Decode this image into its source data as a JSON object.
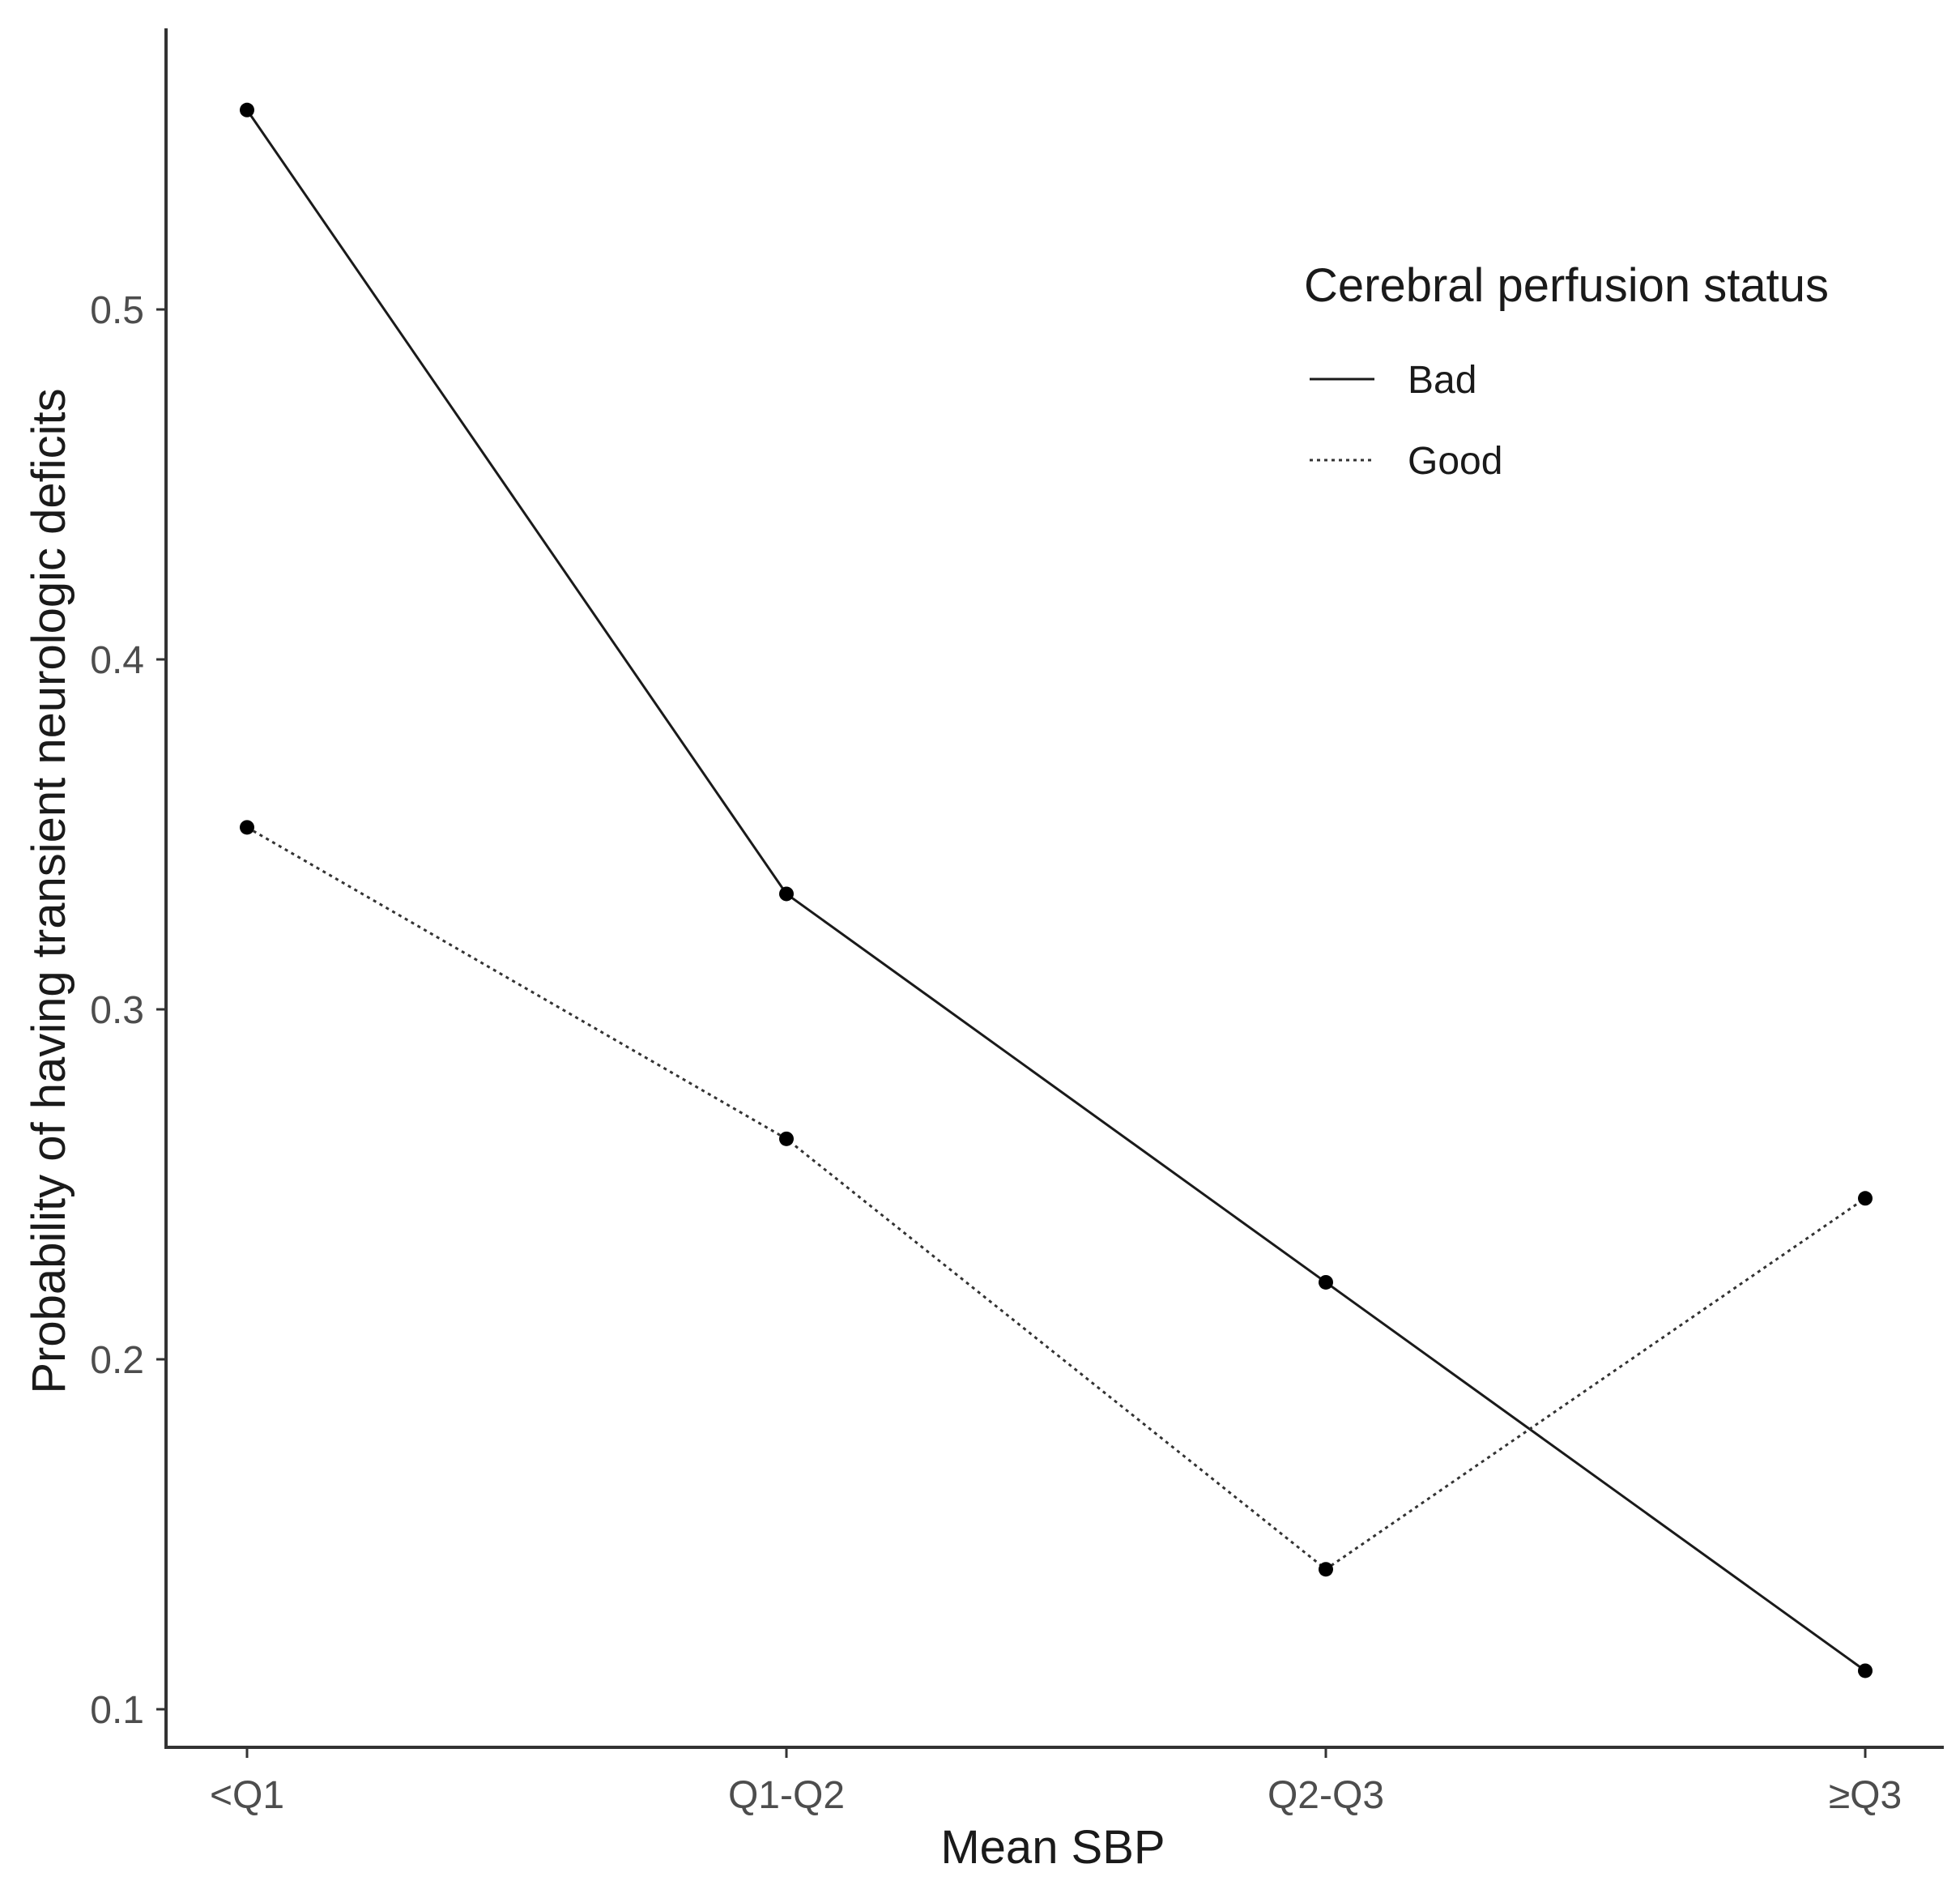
{
  "chart_data": {
    "type": "line",
    "title": "",
    "xlabel": "Mean SBP",
    "ylabel": "Probability of having transient neurologic deficits",
    "categories": [
      "<Q1",
      "Q1-Q2",
      "Q2-Q3",
      "≥Q3"
    ],
    "ylim": [
      0.1,
      0.5
    ],
    "yticks": [
      "0.1",
      "0.2",
      "0.3",
      "0.4",
      "0.5"
    ],
    "grid": false,
    "legend": {
      "title": "Cerebral perfusion status",
      "position": "top-right"
    },
    "series": [
      {
        "name": "Bad",
        "line_style": "solid",
        "color": "#1a1a1a",
        "values": [
          0.557,
          0.333,
          0.222,
          0.111
        ]
      },
      {
        "name": "Good",
        "line_style": "dotted",
        "color": "#333333",
        "values": [
          0.352,
          0.263,
          0.14,
          0.246
        ]
      }
    ]
  }
}
